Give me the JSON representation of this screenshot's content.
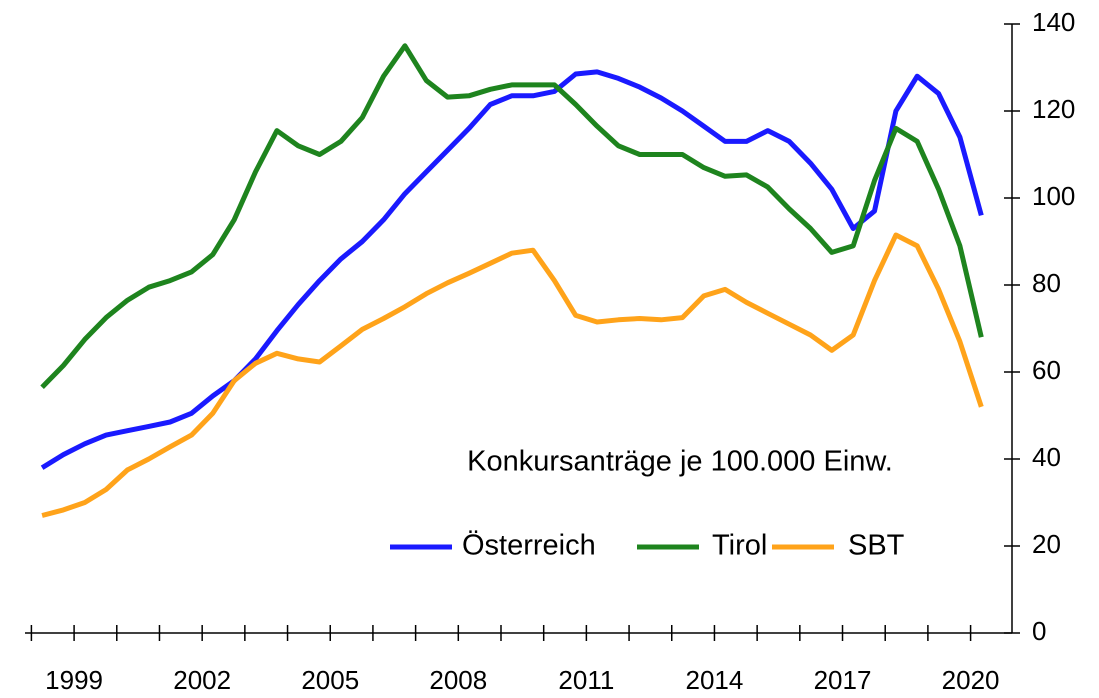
{
  "chart_data": {
    "type": "line",
    "annotation": "Konkursanträge je 100.000 Einw.",
    "x": [
      1998.25,
      1998.75,
      1999.25,
      1999.75,
      2000.25,
      2000.75,
      2001.25,
      2001.75,
      2002.25,
      2002.75,
      2003.25,
      2003.75,
      2004.25,
      2004.75,
      2005.25,
      2005.75,
      2006.25,
      2006.75,
      2007.25,
      2007.75,
      2008.25,
      2008.75,
      2009.25,
      2009.75,
      2010.25,
      2010.75,
      2011.25,
      2011.75,
      2012.25,
      2012.75,
      2013.25,
      2013.75,
      2014.25,
      2014.75,
      2015.25,
      2015.75,
      2016.25,
      2016.75,
      2017.25,
      2017.75,
      2018.25,
      2018.75,
      2019.25,
      2019.75,
      2020.25
    ],
    "series": [
      {
        "name": "Österreich",
        "color": "#1a1aff",
        "values": [
          38,
          41,
          43.5,
          45.5,
          46.5,
          47.5,
          48.5,
          50.5,
          54.5,
          58,
          63,
          69.5,
          75.5,
          81,
          86,
          90,
          95,
          101,
          106,
          111,
          116,
          121.5,
          123.5,
          123.5,
          124.5,
          128.5,
          129,
          127.5,
          125.5,
          123,
          120,
          116.5,
          113,
          113,
          115.5,
          113,
          108,
          102,
          93,
          97,
          120,
          128,
          124,
          114,
          96
        ]
      },
      {
        "name": "Tirol",
        "color": "#1e841e",
        "values": [
          56.5,
          61.5,
          67.5,
          72.5,
          76.5,
          79.5,
          81,
          83,
          87,
          95,
          106,
          115.5,
          112,
          110,
          113,
          118.5,
          128,
          135,
          127,
          123.2,
          123.5,
          125,
          126,
          126,
          126,
          121.5,
          116.5,
          112,
          110,
          110,
          110,
          107,
          105,
          105.3,
          102.5,
          97.5,
          93,
          87.5,
          89,
          104,
          116,
          113,
          102,
          89,
          68
        ]
      },
      {
        "name": "SBT",
        "color": "#ffa31a",
        "values": [
          27,
          28.3,
          30,
          33,
          37.5,
          40,
          42.8,
          45.5,
          50.5,
          58,
          62,
          64.3,
          63,
          62.3,
          66,
          69.8,
          72.3,
          75,
          78,
          80.5,
          82.7,
          85,
          87.3,
          88,
          81,
          73,
          71.5,
          72,
          72.3,
          72,
          72.5,
          77.5,
          79,
          76,
          73.5,
          71,
          68.5,
          65,
          68.5,
          81,
          91.5,
          89,
          79,
          67,
          52
        ]
      }
    ],
    "xlim": [
      1997.85,
      2020.97
    ],
    "xticks": [
      1999,
      2002,
      2005,
      2008,
      2011,
      2014,
      2017,
      2020
    ],
    "xminorticks": [
      1998,
      1999,
      2000,
      2001,
      2002,
      2003,
      2004,
      2005,
      2006,
      2007,
      2008,
      2009,
      2010,
      2011,
      2012,
      2013,
      2014,
      2015,
      2016,
      2017,
      2018,
      2019,
      2020
    ],
    "ylim": [
      0,
      140
    ],
    "yticks": [
      0,
      20,
      40,
      60,
      80,
      100,
      120,
      140
    ],
    "y_axis_side": "right",
    "legend": "lower right",
    "grid": false
  }
}
